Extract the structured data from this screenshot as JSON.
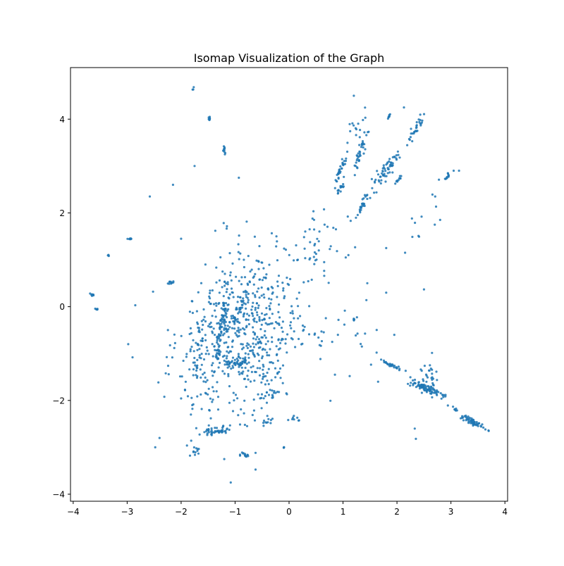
{
  "chart_data": {
    "type": "scatter",
    "title": "Isomap Visualization of the Graph",
    "xlabel": "",
    "ylabel": "",
    "xlim": [
      -4.05,
      4.05
    ],
    "ylim": [
      -4.15,
      5.1
    ],
    "xticks": [
      -4,
      -3,
      -2,
      -1,
      0,
      1,
      2,
      3,
      4
    ],
    "yticks": [
      -4,
      -2,
      0,
      2,
      4
    ],
    "xtick_labels": [
      "−4",
      "−3",
      "−2",
      "−1",
      "0",
      "1",
      "2",
      "3",
      "4"
    ],
    "ytick_labels": [
      "−4",
      "−2",
      "0",
      "2",
      "4"
    ],
    "grid": false,
    "legend": "none",
    "marker_color": "#1f77b4",
    "clusters": [
      {
        "cx": -1.48,
        "cy": 4.02,
        "sx": 0.01,
        "sy": 0.02,
        "rho": 0,
        "n": 10
      },
      {
        "cx": -1.77,
        "cy": 4.65,
        "sx": 0.01,
        "sy": 0.03,
        "rho": 0,
        "n": 3
      },
      {
        "cx": -1.2,
        "cy": 3.33,
        "sx": 0.02,
        "sy": 0.06,
        "rho": -0.5,
        "n": 10
      },
      {
        "cx": -2.95,
        "cy": 1.45,
        "sx": 0.02,
        "sy": 0.01,
        "rho": 0,
        "n": 8
      },
      {
        "cx": -3.35,
        "cy": 1.1,
        "sx": 0.01,
        "sy": 0.01,
        "rho": 0,
        "n": 4
      },
      {
        "cx": -3.65,
        "cy": 0.25,
        "sx": 0.015,
        "sy": 0.015,
        "rho": 0,
        "n": 8
      },
      {
        "cx": -3.57,
        "cy": -0.05,
        "sx": 0.01,
        "sy": 0.01,
        "rho": 0,
        "n": 5
      },
      {
        "cx": -2.2,
        "cy": 0.52,
        "sx": 0.03,
        "sy": 0.02,
        "rho": 0,
        "n": 10
      },
      {
        "cx": -1.15,
        "cy": -0.5,
        "sx": 0.45,
        "sy": 0.9,
        "rho": 0.3,
        "n": 320
      },
      {
        "cx": -0.55,
        "cy": -0.6,
        "sx": 0.35,
        "sy": 0.9,
        "rho": 0.3,
        "n": 230
      },
      {
        "cx": -1.25,
        "cy": -0.45,
        "sx": 0.06,
        "sy": 0.4,
        "rho": 0.9,
        "n": 60
      },
      {
        "cx": -0.95,
        "cy": -1.2,
        "sx": 0.12,
        "sy": 0.04,
        "rho": 0,
        "n": 40
      },
      {
        "cx": -0.9,
        "cy": 0.05,
        "sx": 0.06,
        "sy": 0.2,
        "rho": 0.8,
        "n": 30
      },
      {
        "cx": -1.35,
        "cy": -2.65,
        "sx": 0.15,
        "sy": 0.05,
        "rho": 0.6,
        "n": 45
      },
      {
        "cx": -0.8,
        "cy": -3.15,
        "sx": 0.08,
        "sy": 0.03,
        "rho": 0,
        "n": 15
      },
      {
        "cx": -1.75,
        "cy": -3.1,
        "sx": 0.06,
        "sy": 0.05,
        "rho": 0.6,
        "n": 10
      },
      {
        "cx": -0.4,
        "cy": -2.45,
        "sx": 0.05,
        "sy": 0.05,
        "rho": 0.6,
        "n": 10
      },
      {
        "cx": 0.1,
        "cy": -2.4,
        "sx": 0.05,
        "sy": 0.03,
        "rho": 0,
        "n": 8
      },
      {
        "cx": -0.1,
        "cy": -3.0,
        "sx": 0.005,
        "sy": 0.005,
        "rho": 0,
        "n": 4
      },
      {
        "cx": -1.7,
        "cy": -1.2,
        "sx": 0.2,
        "sy": 0.6,
        "rho": 0.2,
        "n": 50
      },
      {
        "cx": -0.3,
        "cy": -1.85,
        "sx": 0.2,
        "sy": 0.05,
        "rho": 0,
        "n": 20
      },
      {
        "cx": 0.0,
        "cy": 0.2,
        "sx": 0.25,
        "sy": 0.7,
        "rho": 0.3,
        "n": 40
      },
      {
        "cx": 0.15,
        "cy": -0.75,
        "sx": 0.3,
        "sy": 0.2,
        "rho": 0,
        "n": 20
      },
      {
        "cx": 0.6,
        "cy": 1.5,
        "sx": 0.35,
        "sy": 0.6,
        "rho": 0.7,
        "n": 45
      },
      {
        "cx": 0.95,
        "cy": 2.9,
        "sx": 0.05,
        "sy": 0.15,
        "rho": 0.9,
        "n": 30
      },
      {
        "cx": 0.95,
        "cy": 2.5,
        "sx": 0.05,
        "sy": 0.08,
        "rho": 0.9,
        "n": 15
      },
      {
        "cx": 1.35,
        "cy": 3.4,
        "sx": 0.06,
        "sy": 0.2,
        "rho": 0.9,
        "n": 35
      },
      {
        "cx": 1.35,
        "cy": 2.15,
        "sx": 0.05,
        "sy": 0.12,
        "rho": 0.9,
        "n": 25
      },
      {
        "cx": 1.8,
        "cy": 2.92,
        "sx": 0.12,
        "sy": 0.2,
        "rho": 0.85,
        "n": 60
      },
      {
        "cx": 2.35,
        "cy": 3.8,
        "sx": 0.08,
        "sy": 0.15,
        "rho": 0.9,
        "n": 30
      },
      {
        "cx": 2.05,
        "cy": 2.75,
        "sx": 0.04,
        "sy": 0.05,
        "rho": 0.9,
        "n": 10
      },
      {
        "cx": 2.95,
        "cy": 2.8,
        "sx": 0.03,
        "sy": 0.05,
        "rho": 0.9,
        "n": 12
      },
      {
        "cx": 1.25,
        "cy": 3.8,
        "sx": 0.12,
        "sy": 0.25,
        "rho": 0.3,
        "n": 15
      },
      {
        "cx": 1.85,
        "cy": 4.05,
        "sx": 0.015,
        "sy": 0.03,
        "rho": 0.9,
        "n": 8
      },
      {
        "cx": 2.55,
        "cy": 2.05,
        "sx": 0.15,
        "sy": 0.3,
        "rho": 0.5,
        "n": 10
      },
      {
        "cx": 1.2,
        "cy": -0.28,
        "sx": 0.008,
        "sy": 0.01,
        "rho": 0,
        "n": 6
      },
      {
        "cx": 1.9,
        "cy": -1.25,
        "sx": 0.1,
        "sy": 0.05,
        "rho": -0.9,
        "n": 30
      },
      {
        "cx": 2.55,
        "cy": -1.75,
        "sx": 0.18,
        "sy": 0.1,
        "rho": -0.9,
        "n": 90
      },
      {
        "cx": 2.6,
        "cy": -1.55,
        "sx": 0.08,
        "sy": 0.15,
        "rho": -0.2,
        "n": 25
      },
      {
        "cx": 3.4,
        "cy": -2.45,
        "sx": 0.12,
        "sy": 0.08,
        "rho": -0.9,
        "n": 55
      },
      {
        "cx": 3.1,
        "cy": -2.2,
        "sx": 0.04,
        "sy": 0.04,
        "rho": -0.9,
        "n": 8
      },
      {
        "cx": 1.3,
        "cy": -0.5,
        "sx": 0.5,
        "sy": 0.6,
        "rho": 0,
        "n": 20
      }
    ],
    "extra_points": [
      {
        "x": -1.55,
        "y": 0.9
      },
      {
        "x": -1.75,
        "y": 3.0
      },
      {
        "x": -2.15,
        "y": 2.6
      },
      {
        "x": -2.58,
        "y": 2.35
      },
      {
        "x": -0.93,
        "y": 2.75
      },
      {
        "x": -2.0,
        "y": 1.45
      },
      {
        "x": -2.85,
        "y": 0.03
      },
      {
        "x": -2.52,
        "y": 0.32
      },
      {
        "x": -2.98,
        "y": -0.8
      },
      {
        "x": -2.9,
        "y": -1.08
      },
      {
        "x": -2.4,
        "y": -2.8
      },
      {
        "x": -2.48,
        "y": -3.0
      },
      {
        "x": -1.08,
        "y": -3.75
      },
      {
        "x": -1.2,
        "y": -3.25
      },
      {
        "x": 1.2,
        "y": 4.5
      },
      {
        "x": 2.13,
        "y": 4.25
      },
      {
        "x": 3.05,
        "y": 2.9
      },
      {
        "x": 3.15,
        "y": 2.9
      },
      {
        "x": 2.7,
        "y": 1.75
      },
      {
        "x": 2.8,
        "y": 1.85
      },
      {
        "x": 2.15,
        "y": 1.15
      },
      {
        "x": 1.8,
        "y": 1.25
      },
      {
        "x": 1.8,
        "y": 0.3
      },
      {
        "x": 1.45,
        "y": 0.5
      },
      {
        "x": 0.65,
        "y": 0.95
      },
      {
        "x": 1.35,
        "y": -0.85
      },
      {
        "x": 1.65,
        "y": -1.6
      },
      {
        "x": 1.95,
        "y": -0.6
      },
      {
        "x": 2.33,
        "y": -2.6
      },
      {
        "x": 2.35,
        "y": -2.82
      },
      {
        "x": 3.7,
        "y": -2.65
      },
      {
        "x": 3.6,
        "y": -2.58
      },
      {
        "x": 0.85,
        "y": -1.45
      },
      {
        "x": 0.8,
        "y": -0.75
      },
      {
        "x": 1.05,
        "y": 1.05
      },
      {
        "x": 1.1,
        "y": 1.1
      }
    ]
  }
}
